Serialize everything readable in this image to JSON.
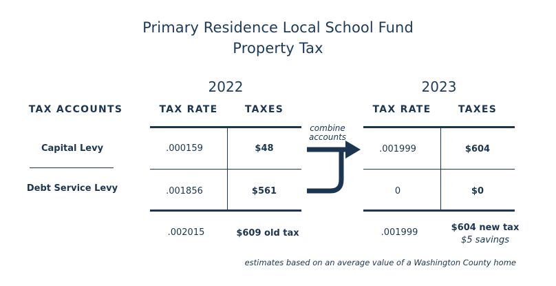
{
  "title": {
    "line1": "Primary Residence Local School Fund",
    "line2": "Property Tax"
  },
  "columns": {
    "accounts_header": "TAX ACCOUNTS",
    "rate_header": "TAX RATE",
    "taxes_header": "TAXES"
  },
  "years": {
    "left": "2022",
    "right": "2023"
  },
  "rows": [
    {
      "account": "Capital Levy",
      "rate_2022": ".000159",
      "taxes_2022": "$48",
      "rate_2023": ".001999",
      "taxes_2023": "$604"
    },
    {
      "account": "Debt Service Levy",
      "rate_2022": ".001856",
      "taxes_2022": "$561",
      "rate_2023": "0",
      "taxes_2023": "$0"
    }
  ],
  "totals": {
    "rate_2022": ".002015",
    "taxes_2022": "$609 old tax",
    "rate_2023": ".001999",
    "taxes_2023": "$604 new tax",
    "savings": "$5 savings"
  },
  "arrow_label": {
    "line1": "combine",
    "line2": "accounts"
  },
  "footnote": "estimates based on an average value of a Washington County home",
  "colors": {
    "navy": "#1c3550"
  }
}
